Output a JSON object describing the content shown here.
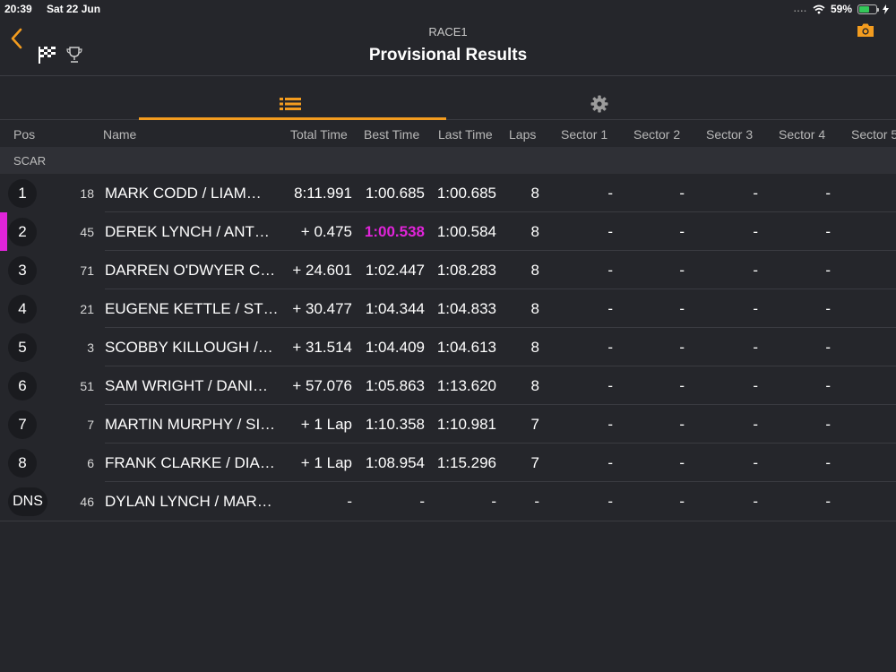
{
  "status_bar": {
    "time": "20:39",
    "date": "Sat 22 Jun",
    "signal": "....",
    "battery_text": "59%",
    "battery_level": 0.59
  },
  "header": {
    "subtitle": "RACE1",
    "title": "Provisional Results"
  },
  "colors": {
    "accent": "#f39c1f",
    "fastest": "#e024d9",
    "background": "#25262b"
  },
  "columns": {
    "pos": "Pos",
    "name": "Name",
    "total_time": "Total Time",
    "best_time": "Best Time",
    "last_time": "Last Time",
    "laps": "Laps",
    "sector1": "Sector 1",
    "sector2": "Sector 2",
    "sector3": "Sector 3",
    "sector4": "Sector 4",
    "sector5": "Sector 5"
  },
  "group": {
    "label": "SCAR"
  },
  "results": [
    {
      "pos": "1",
      "num": "18",
      "name": "MARK CODD / LIAM…",
      "total": "8:11.991",
      "best": "1:00.685",
      "last": "1:00.685",
      "laps": "8",
      "s1": "-",
      "s2": "-",
      "s3": "-",
      "s4": "-",
      "fastest": false
    },
    {
      "pos": "2",
      "num": "45",
      "name": "DEREK LYNCH / ANT…",
      "total": "+ 0.475",
      "best": "1:00.538",
      "last": "1:00.584",
      "laps": "8",
      "s1": "-",
      "s2": "-",
      "s3": "-",
      "s4": "-",
      "fastest": true
    },
    {
      "pos": "3",
      "num": "71",
      "name": "DARREN O'DWYER C…",
      "total": "+ 24.601",
      "best": "1:02.447",
      "last": "1:08.283",
      "laps": "8",
      "s1": "-",
      "s2": "-",
      "s3": "-",
      "s4": "-",
      "fastest": false
    },
    {
      "pos": "4",
      "num": "21",
      "name": "EUGENE KETTLE / ST…",
      "total": "+ 30.477",
      "best": "1:04.344",
      "last": "1:04.833",
      "laps": "8",
      "s1": "-",
      "s2": "-",
      "s3": "-",
      "s4": "-",
      "fastest": false
    },
    {
      "pos": "5",
      "num": "3",
      "name": "SCOBBY KILLOUGH /…",
      "total": "+ 31.514",
      "best": "1:04.409",
      "last": "1:04.613",
      "laps": "8",
      "s1": "-",
      "s2": "-",
      "s3": "-",
      "s4": "-",
      "fastest": false
    },
    {
      "pos": "6",
      "num": "51",
      "name": "SAM WRIGHT / DANI…",
      "total": "+ 57.076",
      "best": "1:05.863",
      "last": "1:13.620",
      "laps": "8",
      "s1": "-",
      "s2": "-",
      "s3": "-",
      "s4": "-",
      "fastest": false
    },
    {
      "pos": "7",
      "num": "7",
      "name": "MARTIN MURPHY / SI…",
      "total": "+ 1 Lap",
      "best": "1:10.358",
      "last": "1:10.981",
      "laps": "7",
      "s1": "-",
      "s2": "-",
      "s3": "-",
      "s4": "-",
      "fastest": false
    },
    {
      "pos": "8",
      "num": "6",
      "name": "FRANK CLARKE / DIA…",
      "total": "+ 1 Lap",
      "best": "1:08.954",
      "last": "1:15.296",
      "laps": "7",
      "s1": "-",
      "s2": "-",
      "s3": "-",
      "s4": "-",
      "fastest": false
    },
    {
      "pos": "DNS",
      "num": "46",
      "name": "DYLAN LYNCH / MAR…",
      "total": "-",
      "best": "-",
      "last": "-",
      "laps": "-",
      "s1": "-",
      "s2": "-",
      "s3": "-",
      "s4": "-",
      "fastest": false
    }
  ]
}
